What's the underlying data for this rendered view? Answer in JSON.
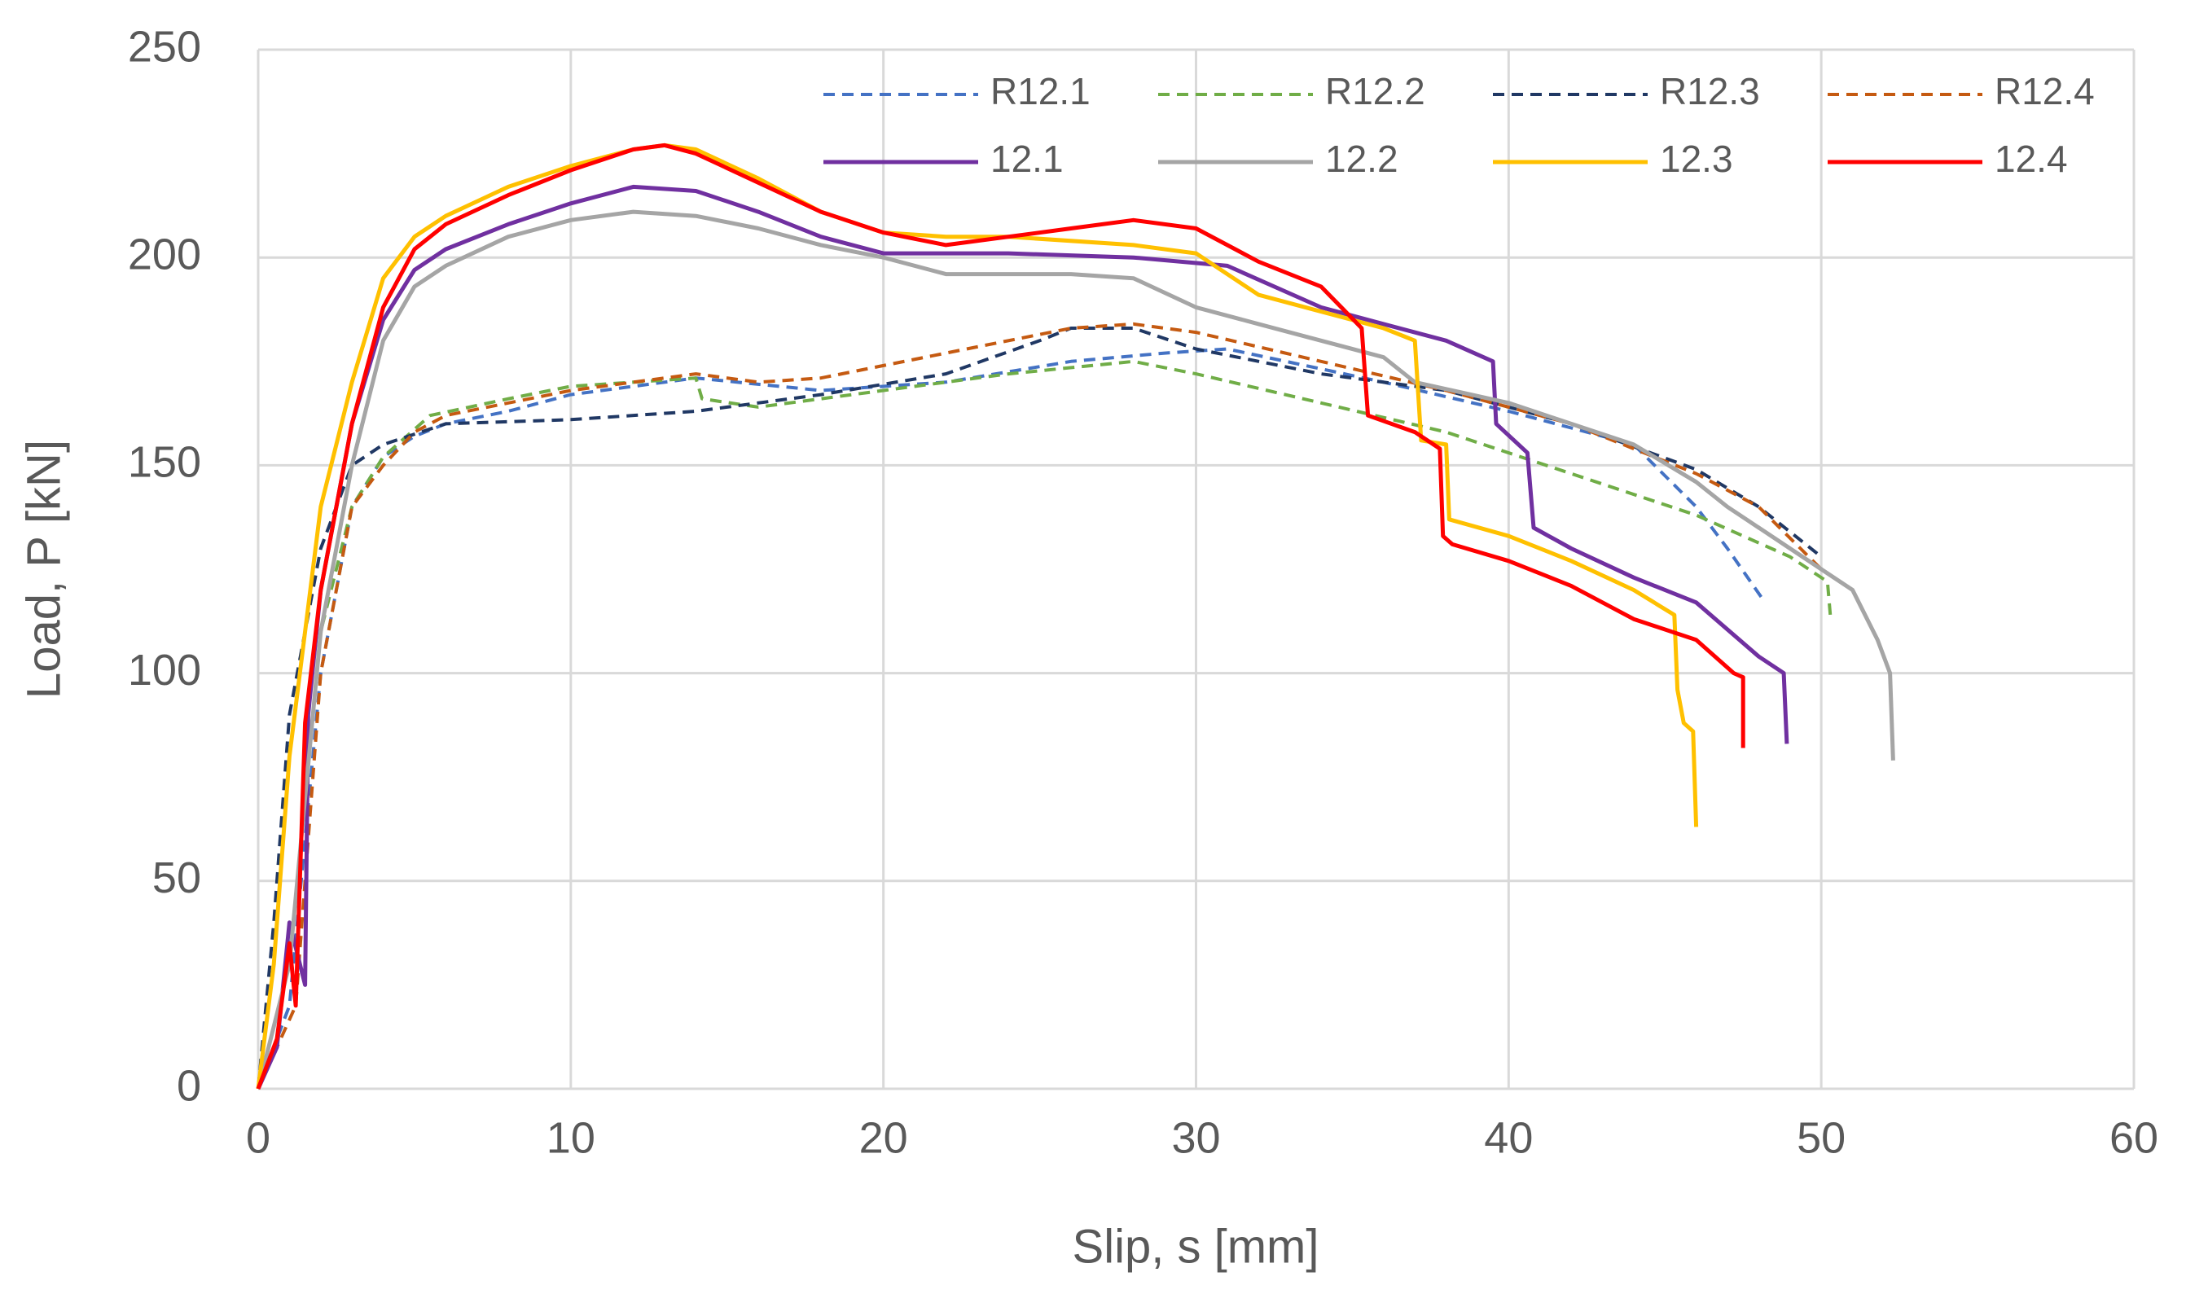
{
  "chart_data": {
    "type": "line",
    "x_label": "Slip, s [mm]",
    "y_label": "Load, P [kN]",
    "xlim": [
      0,
      60
    ],
    "xticks": [
      0,
      10,
      20,
      30,
      40,
      50,
      60
    ],
    "ylim": [
      0,
      250
    ],
    "yticks": [
      0,
      50,
      100,
      150,
      200,
      250
    ],
    "grid": true,
    "legend": "upper right",
    "series": [
      {
        "name": "R12.1",
        "color": "#4472c4",
        "line_style": "dashed",
        "x": [
          0,
          1,
          2,
          3,
          4,
          5,
          6,
          8,
          10,
          14,
          18,
          22,
          26,
          29,
          31,
          36,
          40,
          44,
          46,
          47,
          48.2
        ],
        "values": [
          0,
          20,
          100,
          140,
          152,
          157,
          160,
          163,
          167,
          171,
          168,
          170,
          175,
          177,
          178,
          170,
          163,
          155,
          140,
          130,
          117
        ]
      },
      {
        "name": "R12.2",
        "color": "#70ad47",
        "line_style": "dashed",
        "x": [
          0,
          1,
          2,
          3,
          4,
          5.5,
          8,
          10,
          14,
          14.2,
          16,
          20,
          24,
          28,
          30,
          34,
          38,
          42,
          46,
          49,
          50.2,
          50.3
        ],
        "values": [
          0,
          30,
          110,
          140,
          152,
          162,
          166,
          169,
          171,
          166,
          164,
          168,
          172,
          175,
          172,
          165,
          158,
          148,
          138,
          128,
          122,
          113
        ]
      },
      {
        "name": "R12.3",
        "color": "#203864",
        "line_style": "dashed",
        "x": [
          0,
          0.5,
          1,
          2,
          3,
          4,
          6,
          10,
          14,
          18,
          22,
          25,
          26,
          28,
          30,
          34,
          38,
          42,
          46,
          48,
          50
        ],
        "values": [
          0,
          40,
          90,
          130,
          150,
          155,
          160,
          161,
          163,
          167,
          172,
          180,
          183,
          183,
          178,
          172,
          168,
          160,
          149,
          140,
          128
        ]
      },
      {
        "name": "R12.4",
        "color": "#c55a11",
        "line_style": "dashed",
        "x": [
          0,
          1.2,
          2,
          3,
          4,
          5,
          6,
          10,
          14,
          16,
          18,
          22,
          26,
          28,
          30,
          34,
          38,
          42,
          46,
          48,
          50
        ],
        "values": [
          0,
          20,
          100,
          140,
          150,
          158,
          162,
          168,
          172,
          170,
          171,
          177,
          183,
          184,
          182,
          175,
          168,
          160,
          148,
          140,
          125
        ]
      },
      {
        "name": "12.1",
        "color": "#7030a0",
        "line_style": "solid",
        "x": [
          0,
          0.6,
          1,
          1.5,
          1.6,
          2,
          3,
          4,
          5,
          6,
          8,
          10,
          12,
          14,
          16,
          18,
          20,
          24,
          28,
          31,
          34,
          36,
          38,
          39.5,
          39.6,
          40.6,
          40.8,
          42,
          44,
          46,
          48,
          48.8,
          48.9
        ],
        "values": [
          0,
          10,
          40,
          25,
          90,
          120,
          160,
          185,
          197,
          202,
          208,
          213,
          217,
          216,
          211,
          205,
          201,
          201,
          200,
          198,
          188,
          184,
          180,
          175,
          160,
          153,
          135,
          130,
          123,
          117,
          104,
          100,
          83
        ]
      },
      {
        "name": "12.2",
        "color": "#a5a5a5",
        "line_style": "solid",
        "x": [
          0,
          1,
          2,
          3,
          4,
          5,
          6,
          8,
          10,
          12,
          14,
          16,
          18,
          20,
          22,
          26,
          28,
          30,
          32,
          34,
          36,
          37,
          40,
          42,
          44,
          46,
          47,
          49,
          51,
          51.8,
          52.2,
          52.3
        ],
        "values": [
          0,
          30,
          110,
          150,
          180,
          193,
          198,
          205,
          209,
          211,
          210,
          207,
          203,
          200,
          196,
          196,
          195,
          188,
          184,
          180,
          176,
          170,
          165,
          160,
          155,
          146,
          140,
          130,
          120,
          108,
          100,
          79
        ]
      },
      {
        "name": "12.3",
        "color": "#ffc000",
        "line_style": "solid",
        "x": [
          0,
          0.5,
          1,
          2,
          3,
          4,
          5,
          6,
          8,
          10,
          12,
          13,
          14,
          16,
          18,
          20,
          22,
          24,
          28,
          30,
          32,
          34,
          36,
          37,
          37.2,
          38,
          38.1,
          40,
          42,
          44,
          45.3,
          45.4,
          45.6,
          45.9,
          46
        ],
        "values": [
          0,
          30,
          80,
          140,
          170,
          195,
          205,
          210,
          217,
          222,
          226,
          227,
          226,
          219,
          211,
          206,
          205,
          205,
          203,
          201,
          191,
          187,
          183,
          180,
          156,
          155,
          137,
          133,
          127,
          120,
          114,
          96,
          88,
          86,
          63
        ]
      },
      {
        "name": "12.4",
        "color": "#ff0000",
        "line_style": "solid",
        "x": [
          0,
          0.6,
          1,
          1.2,
          1.5,
          2,
          3,
          4,
          5,
          6,
          8,
          10,
          12,
          13,
          14,
          16,
          18,
          20,
          22,
          24,
          26,
          28,
          30,
          32,
          34,
          35.3,
          35.5,
          37,
          37.8,
          37.9,
          38.2,
          40,
          42,
          44,
          46,
          47.2,
          47.5,
          47.5
        ],
        "values": [
          0,
          12,
          35,
          20,
          88,
          120,
          160,
          188,
          202,
          208,
          215,
          221,
          226,
          227,
          225,
          218,
          211,
          206,
          203,
          205,
          207,
          209,
          207,
          199,
          193,
          183,
          162,
          158,
          154,
          133,
          131,
          127,
          121,
          113,
          108,
          100,
          99,
          82
        ]
      }
    ]
  }
}
